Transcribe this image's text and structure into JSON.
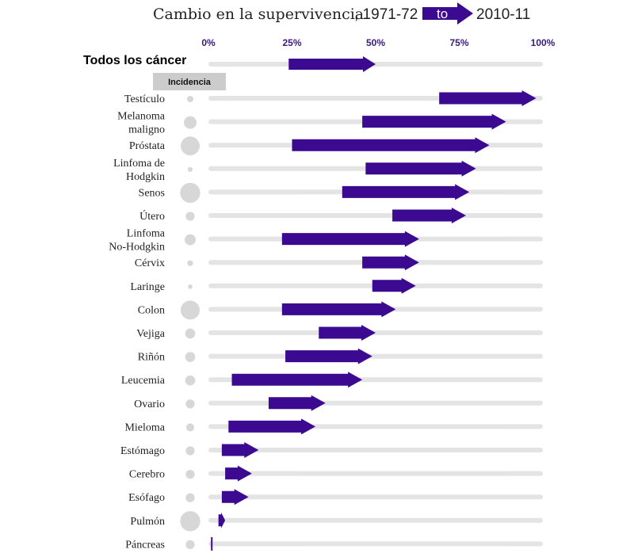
{
  "colors": {
    "arrow": "#3b0a91",
    "track": "#e4e4e4",
    "bubble": "#d7d7d7",
    "legend_box": "#cccccc",
    "tick": "#3a1a7a"
  },
  "legend": {
    "title_text": "Cambio en la supervivencia",
    "start_year": ", 1971-72",
    "to_label": "to",
    "end_year": "2010-11"
  },
  "incidence_label": "Incidencia",
  "chart_data": {
    "type": "arrow-range",
    "title": "Cambio en la supervivencia, 1971-72 to 2010-11",
    "x_ticks": [
      "0%",
      "25%",
      "50%",
      "75%",
      "100%"
    ],
    "xlim": [
      0,
      100
    ],
    "overall": {
      "label": "Todos los cáncer",
      "from": 24,
      "to": 50
    },
    "categories": [
      {
        "label": "Testículo",
        "from": 69,
        "to": 98,
        "incidence": 1
      },
      {
        "label": "Melanoma\nmaligno",
        "from": 46,
        "to": 89,
        "incidence": 4
      },
      {
        "label": "Próstata",
        "from": 25,
        "to": 84,
        "incidence": 9
      },
      {
        "label": "Linfoma de\nHodgkin",
        "from": 47,
        "to": 80,
        "incidence": 0.6
      },
      {
        "label": "Senos",
        "from": 40,
        "to": 78,
        "incidence": 10
      },
      {
        "label": "Útero",
        "from": 55,
        "to": 77,
        "incidence": 2
      },
      {
        "label": "Linfoma\nNo-Hodgkin",
        "from": 22,
        "to": 63,
        "incidence": 3
      },
      {
        "label": "Cérvix",
        "from": 46,
        "to": 63,
        "incidence": 0.8
      },
      {
        "label": "Laringe",
        "from": 49,
        "to": 62,
        "incidence": 0.5
      },
      {
        "label": "Colon",
        "from": 22,
        "to": 56,
        "incidence": 9
      },
      {
        "label": "Vejiga",
        "from": 33,
        "to": 50,
        "incidence": 2.5
      },
      {
        "label": "Riñón",
        "from": 23,
        "to": 49,
        "incidence": 2.5
      },
      {
        "label": "Leucemia",
        "from": 7,
        "to": 46,
        "incidence": 2.5
      },
      {
        "label": "Ovario",
        "from": 18,
        "to": 35,
        "incidence": 2
      },
      {
        "label": "Mieloma",
        "from": 6,
        "to": 32,
        "incidence": 1.6
      },
      {
        "label": "Estómago",
        "from": 4,
        "to": 15,
        "incidence": 2
      },
      {
        "label": "Cerebro",
        "from": 5,
        "to": 13,
        "incidence": 2
      },
      {
        "label": "Esófago",
        "from": 4,
        "to": 12,
        "incidence": 2
      },
      {
        "label": "Pulmón",
        "from": 3,
        "to": 5,
        "incidence": 10
      },
      {
        "label": "Páncreas",
        "from": 1,
        "to": 1,
        "incidence": 2
      }
    ]
  }
}
